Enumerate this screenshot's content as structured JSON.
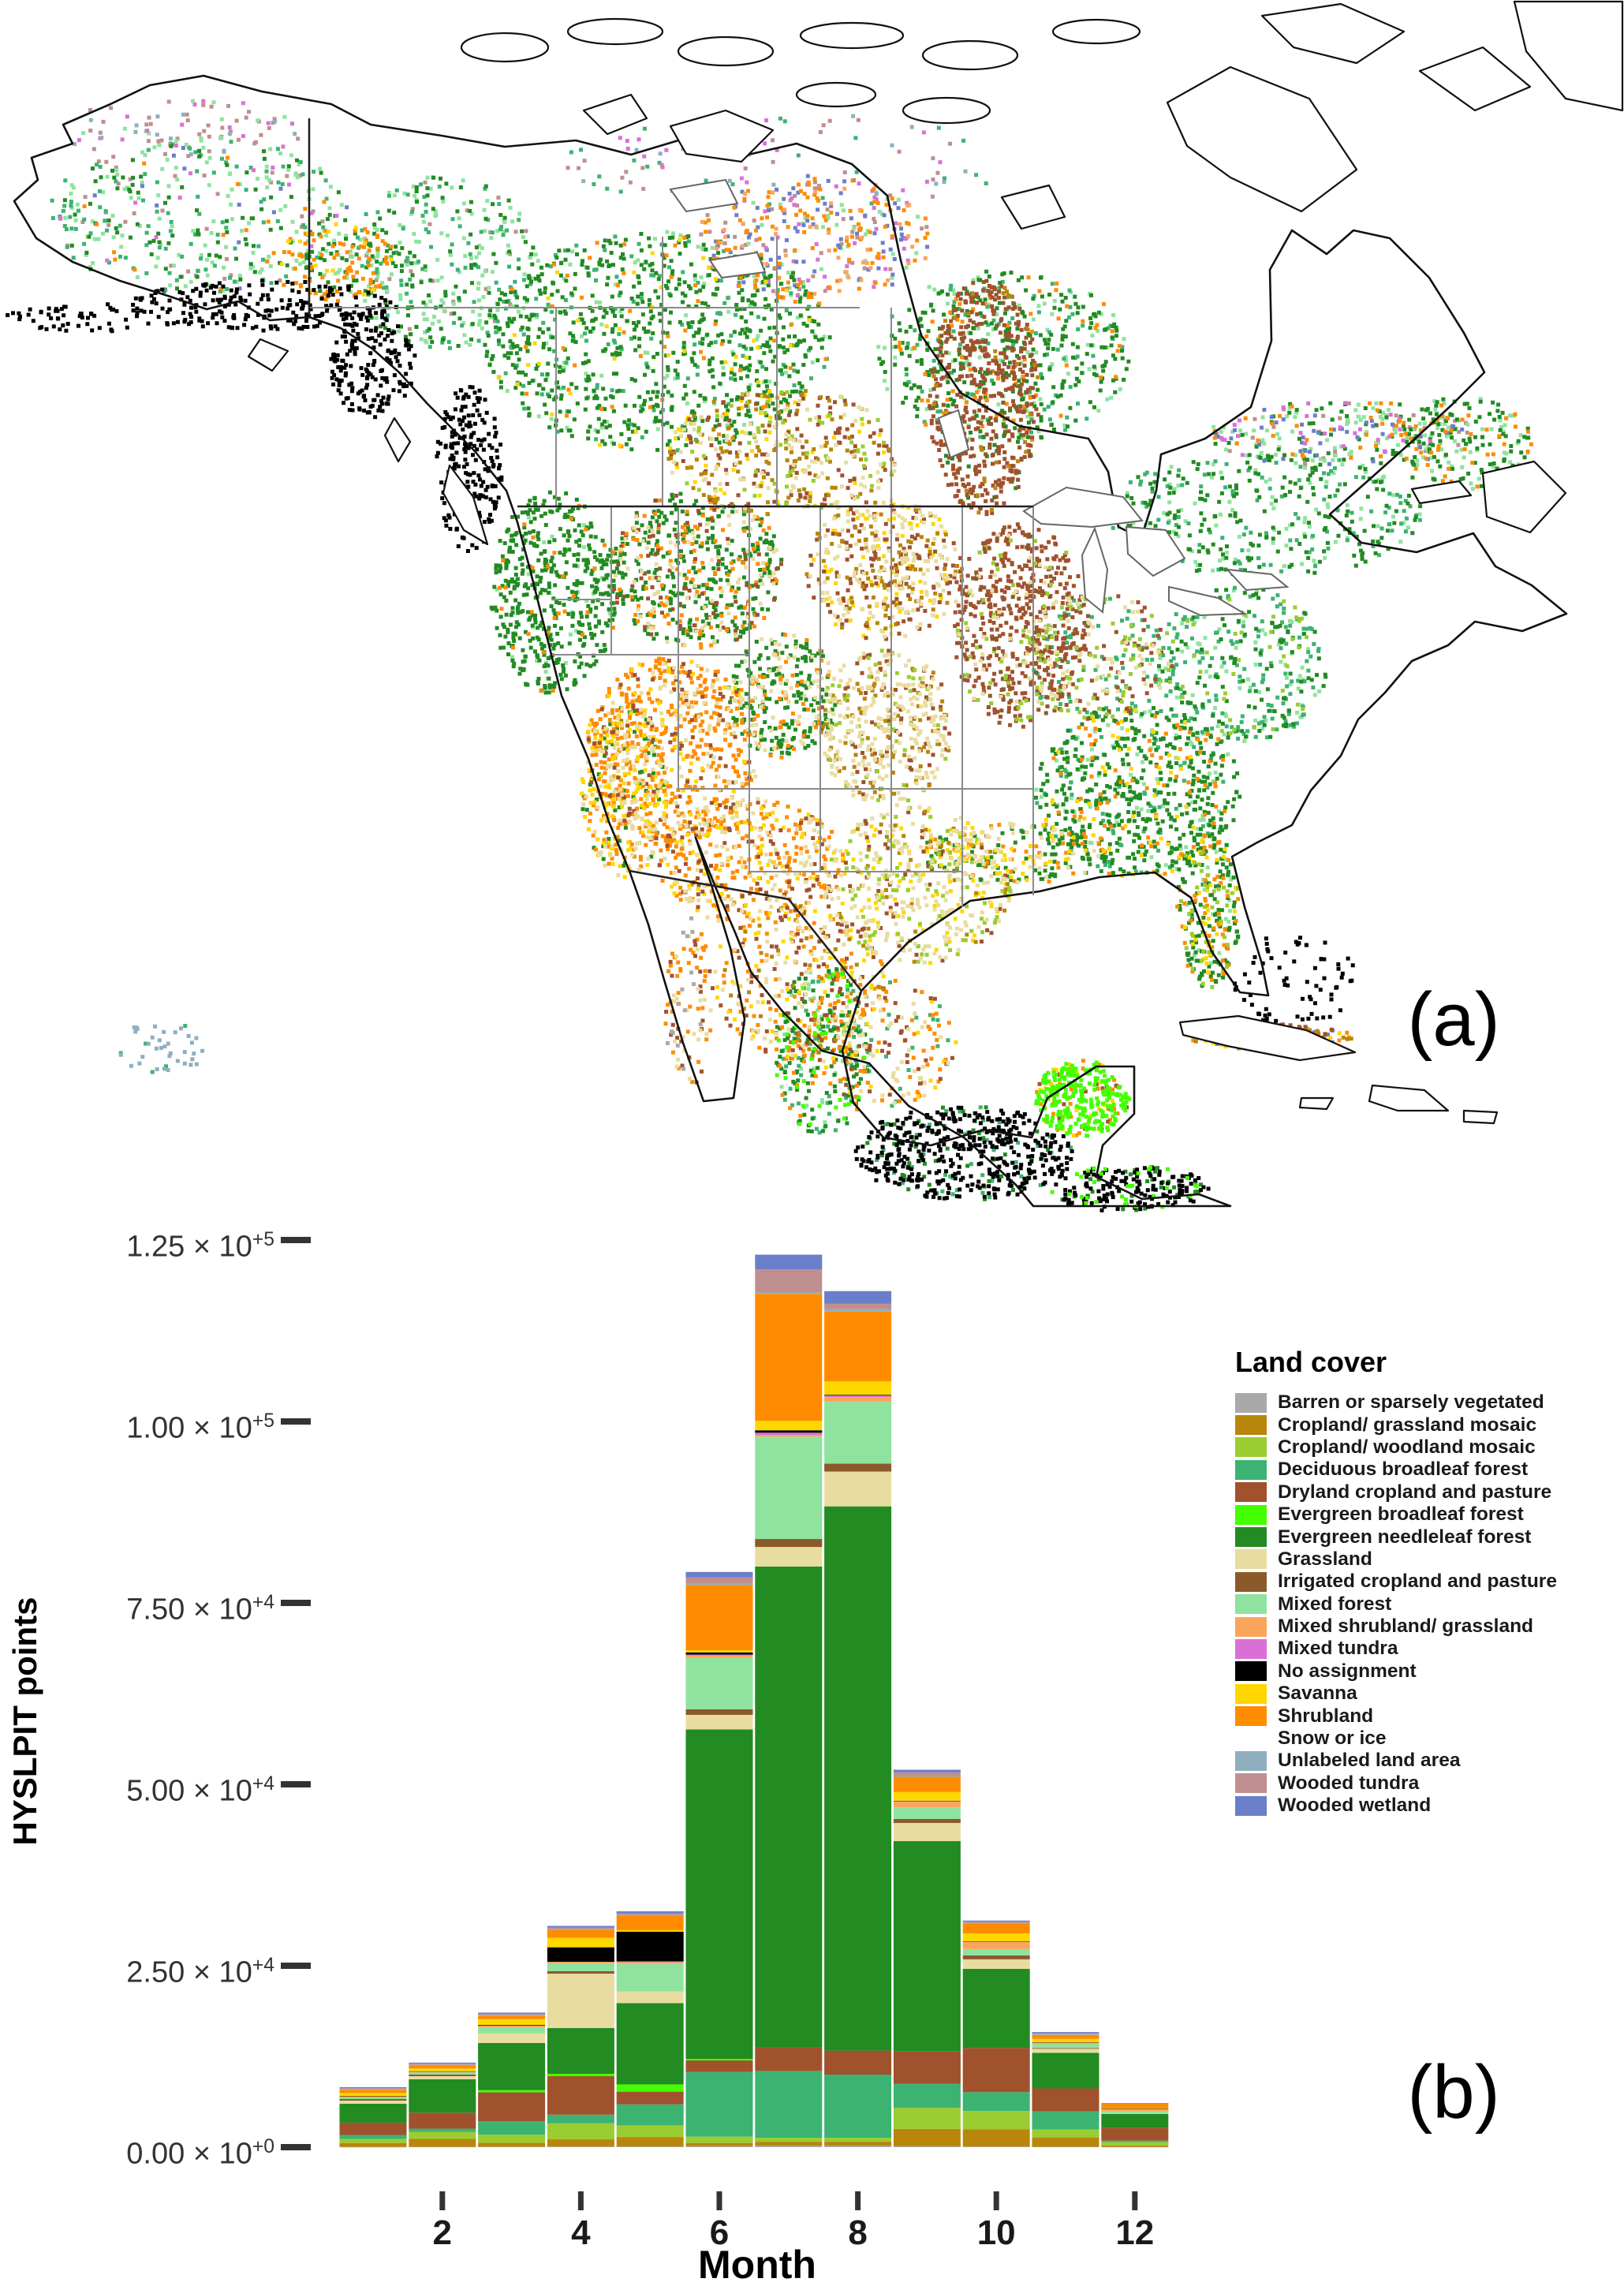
{
  "panel_a": {
    "label": "(a)"
  },
  "panel_b": {
    "label": "(b)"
  },
  "legend": {
    "title": "Land cover",
    "items": [
      {
        "label": "Barren or sparsely vegetated",
        "color": "#A9A9A9"
      },
      {
        "label": "Cropland/ grassland mosaic",
        "color": "#B8860B"
      },
      {
        "label": "Cropland/ woodland mosaic",
        "color": "#9ACD32"
      },
      {
        "label": "Deciduous broadleaf forest",
        "color": "#3CB371"
      },
      {
        "label": "Dryland cropland and pasture",
        "color": "#A0522D"
      },
      {
        "label": "Evergreen broadleaf forest",
        "color": "#44FF00"
      },
      {
        "label": "Evergreen needleleaf forest",
        "color": "#228B22"
      },
      {
        "label": "Grassland",
        "color": "#E9DCA0"
      },
      {
        "label": "Irrigated cropland and pasture",
        "color": "#8B5A2B"
      },
      {
        "label": "Mixed forest",
        "color": "#8FE39E"
      },
      {
        "label": "Mixed shrubland/ grassland",
        "color": "#FBA55C"
      },
      {
        "label": "Mixed tundra",
        "color": "#DA70D6"
      },
      {
        "label": "No assignment",
        "color": "#000000"
      },
      {
        "label": "Savanna",
        "color": "#FFD700"
      },
      {
        "label": "Shrubland",
        "color": "#FF8C00"
      },
      {
        "label": "Snow or ice",
        "color": "#FFFFFF"
      },
      {
        "label": "Unlabeled land area",
        "color": "#8FAFBF"
      },
      {
        "label": "Wooded tundra",
        "color": "#BF8F8F"
      },
      {
        "label": "Wooded wetland",
        "color": "#6B7EC9"
      }
    ]
  },
  "chart_data": {
    "type": "bar",
    "stacked": true,
    "title": "",
    "xlabel": "Month",
    "ylabel": "HYSLPIT points",
    "ylim": [
      0,
      130000
    ],
    "grid": false,
    "legend_position": "right",
    "categories": [
      1,
      2,
      3,
      4,
      5,
      6,
      7,
      8,
      9,
      10,
      11,
      12
    ],
    "x_tick_labels": [
      "2",
      "4",
      "6",
      "8",
      "10",
      "12"
    ],
    "x_tick_months": [
      2,
      4,
      6,
      8,
      10,
      12
    ],
    "times_symbol": "× 10",
    "y_ticks": [
      {
        "value": 0,
        "mantissa": "0.00",
        "exponent": "+0"
      },
      {
        "value": 25000,
        "mantissa": "2.50",
        "exponent": "+4"
      },
      {
        "value": 50000,
        "mantissa": "5.00",
        "exponent": "+4"
      },
      {
        "value": 75000,
        "mantissa": "7.50",
        "exponent": "+4"
      },
      {
        "value": 100000,
        "mantissa": "1.00",
        "exponent": "+5"
      },
      {
        "value": 125000,
        "mantissa": "1.25",
        "exponent": "+5"
      }
    ],
    "series": [
      {
        "name": "Barren or sparsely vegetated",
        "color": "#A9A9A9",
        "values": [
          30,
          40,
          60,
          80,
          100,
          150,
          200,
          200,
          120,
          80,
          50,
          30
        ]
      },
      {
        "name": "Cropland/ grassland mosaic",
        "color": "#B8860B",
        "values": [
          550,
          1100,
          550,
          1000,
          1300,
          430,
          550,
          550,
          2400,
          2400,
          1300,
          220
        ]
      },
      {
        "name": "Cropland/ woodland mosaic",
        "color": "#9ACD32",
        "values": [
          550,
          980,
          1100,
          2200,
          1600,
          870,
          550,
          550,
          2900,
          2500,
          1100,
          430
        ]
      },
      {
        "name": "Deciduous broadleaf forest",
        "color": "#3CB371",
        "values": [
          550,
          430,
          1850,
          1200,
          2900,
          8900,
          9200,
          8700,
          3300,
          2600,
          2500,
          220
        ]
      },
      {
        "name": "Dryland cropland and pasture",
        "color": "#A0522D",
        "values": [
          1700,
          2200,
          4000,
          5300,
          1750,
          1600,
          3300,
          3300,
          4450,
          6100,
          3150,
          1800
        ]
      },
      {
        "name": "Evergreen broadleaf forest",
        "color": "#44FF00",
        "values": [
          0,
          0,
          300,
          330,
          1000,
          220,
          0,
          0,
          0,
          0,
          0,
          0
        ]
      },
      {
        "name": "Evergreen needleleaf forest",
        "color": "#228B22",
        "values": [
          2600,
          4600,
          6500,
          6300,
          11200,
          45400,
          66200,
          75000,
          29000,
          10900,
          4900,
          1900
        ]
      },
      {
        "name": "Grassland",
        "color": "#E9DCA0",
        "values": [
          430,
          430,
          1300,
          7500,
          1600,
          2000,
          2700,
          4800,
          2500,
          1300,
          550,
          100
        ]
      },
      {
        "name": "Irrigated cropland and pasture",
        "color": "#8B5A2B",
        "values": [
          220,
          220,
          0,
          330,
          0,
          760,
          1100,
          1100,
          550,
          550,
          100,
          0
        ]
      },
      {
        "name": "Mixed forest",
        "color": "#8FE39E",
        "values": [
          220,
          300,
          870,
          1100,
          3800,
          7100,
          14100,
          8500,
          1600,
          870,
          550,
          220
        ]
      },
      {
        "name": "Mixed shrubland/ grassland",
        "color": "#FBA55C",
        "values": [
          100,
          100,
          200,
          200,
          250,
          300,
          220,
          650,
          760,
          1000,
          220,
          330
        ]
      },
      {
        "name": "Mixed tundra",
        "color": "#DA70D6",
        "values": [
          0,
          0,
          0,
          0,
          100,
          150,
          330,
          220,
          100,
          0,
          0,
          0
        ]
      },
      {
        "name": "No assignment",
        "color": "#000000",
        "values": [
          60,
          60,
          100,
          2000,
          4100,
          300,
          330,
          100,
          60,
          60,
          60,
          30
        ]
      },
      {
        "name": "Savanna",
        "color": "#FFD700",
        "values": [
          450,
          380,
          800,
          1300,
          200,
          300,
          1300,
          1850,
          1200,
          1100,
          430,
          60
        ]
      },
      {
        "name": "Shrubland",
        "color": "#FF8C00",
        "values": [
          450,
          450,
          500,
          1100,
          2000,
          9000,
          17500,
          9600,
          2100,
          1400,
          550,
          650
        ]
      },
      {
        "name": "Snow or ice",
        "color": "#FFFFFF",
        "values": [
          0,
          0,
          0,
          0,
          0,
          0,
          0,
          0,
          0,
          0,
          0,
          0
        ]
      },
      {
        "name": "Unlabeled land area",
        "color": "#8FAFBF",
        "values": [
          60,
          60,
          60,
          100,
          100,
          150,
          200,
          330,
          100,
          60,
          100,
          30
        ]
      },
      {
        "name": "Wooded tundra",
        "color": "#BF8F8F",
        "values": [
          150,
          150,
          150,
          200,
          200,
          870,
          3200,
          760,
          500,
          150,
          150,
          30
        ]
      },
      {
        "name": "Wooded wetland",
        "color": "#6B7EC9",
        "values": [
          150,
          150,
          200,
          250,
          300,
          760,
          2000,
          1750,
          370,
          150,
          150,
          30
        ]
      }
    ]
  }
}
